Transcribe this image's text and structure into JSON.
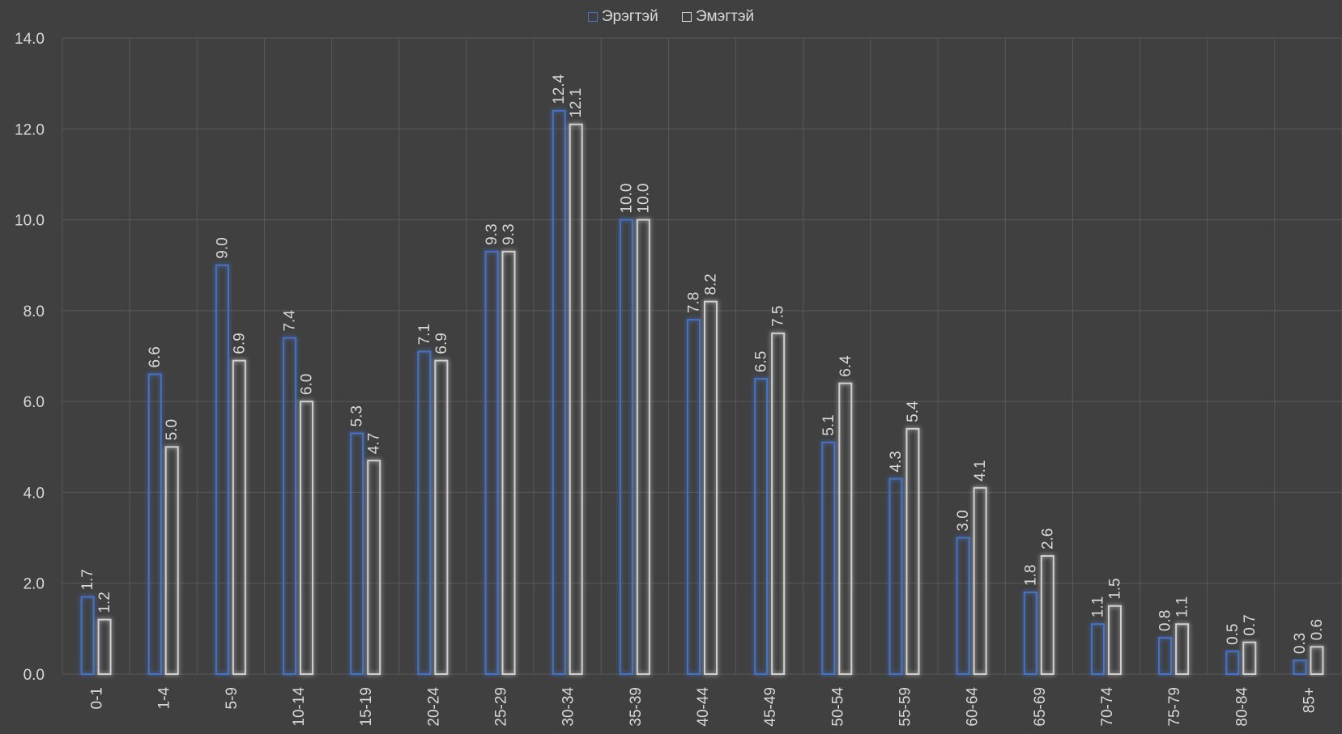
{
  "colors": {
    "background": "#404040",
    "gridline": "#595959",
    "text": "#d9d9d9",
    "series_male": "#4472c4",
    "series_female": "#d0d0d0"
  },
  "chart_data": {
    "type": "bar",
    "title": "",
    "xlabel": "",
    "ylabel": "",
    "ylim": [
      0,
      14
    ],
    "yticks": [
      "0.0",
      "2.0",
      "4.0",
      "6.0",
      "8.0",
      "10.0",
      "12.0",
      "14.0"
    ],
    "grid": true,
    "legend_position": "top",
    "categories": [
      "0-1",
      "1-4",
      "5-9",
      "10-14",
      "15-19",
      "20-24",
      "25-29",
      "30-34",
      "35-39",
      "40-44",
      "45-49",
      "50-54",
      "55-59",
      "60-64",
      "65-69",
      "70-74",
      "75-79",
      "80-84",
      "85+"
    ],
    "series": [
      {
        "name": "Эрэгтэй",
        "color": "#4472c4",
        "values": [
          1.7,
          6.6,
          9.0,
          7.4,
          5.3,
          7.1,
          9.3,
          12.4,
          10.0,
          7.8,
          6.5,
          5.1,
          4.3,
          3.0,
          1.8,
          1.1,
          0.8,
          0.5,
          0.3
        ],
        "labels": [
          "1.7",
          "6.6",
          "9.0",
          "7.4",
          "5.3",
          "7.1",
          "9.3",
          "12.4",
          "10.0",
          "7.8",
          "6.5",
          "5.1",
          "4.3",
          "3.0",
          "1.8",
          "1.1",
          "0.8",
          "0.5",
          "0.3"
        ]
      },
      {
        "name": "Эмэгтэй",
        "color": "#d0d0d0",
        "values": [
          1.2,
          5.0,
          6.9,
          6.0,
          4.7,
          6.9,
          9.3,
          12.1,
          10.0,
          8.2,
          7.5,
          6.4,
          5.4,
          4.1,
          2.6,
          1.5,
          1.1,
          0.7,
          0.6
        ],
        "labels": [
          "1.2",
          "5.0",
          "6.9",
          "6.0",
          "4.7",
          "6.9",
          "9.3",
          "12.1",
          "10.0",
          "8.2",
          "7.5",
          "6.4",
          "5.4",
          "4.1",
          "2.6",
          "1.5",
          "1.1",
          "0.7",
          "0.6"
        ]
      }
    ]
  }
}
